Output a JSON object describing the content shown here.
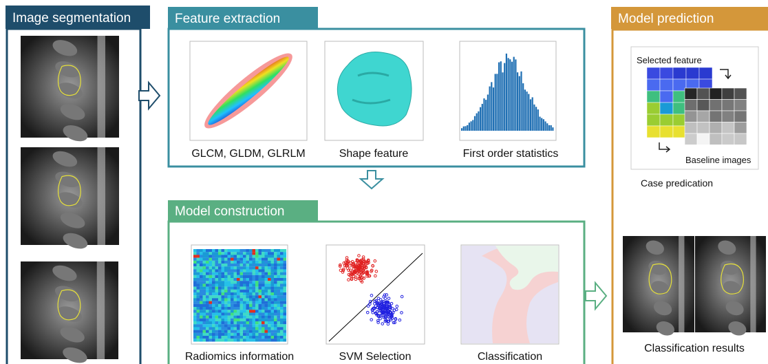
{
  "panels": {
    "segmentation": {
      "title": "Image segmentation"
    },
    "feature_extraction": {
      "title": "Feature extraction",
      "items": [
        "GLCM, GLDM, GLRLM",
        "Shape feature",
        "First order statistics"
      ]
    },
    "model_construction": {
      "title": "Model construction",
      "items": [
        "Radiomics information",
        "SVM Selection",
        "Classification"
      ]
    },
    "model_prediction": {
      "title": "Model prediction",
      "heatmap_title": "Selected feature",
      "baseline_label": "Baseline images",
      "case_label": "Case predication",
      "results_label": "Classification results"
    }
  }
}
